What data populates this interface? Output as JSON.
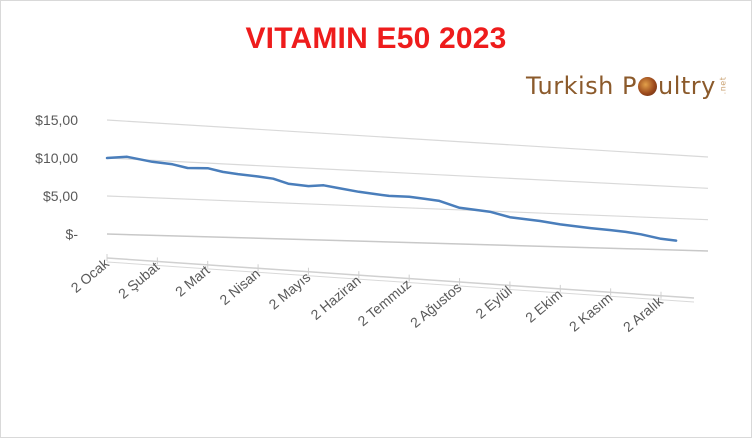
{
  "title": "VITAMIN E50 2023",
  "logo": {
    "text_before": "Turkish P",
    "text_after": "ultry",
    "tld": ".net"
  },
  "chart_data": {
    "type": "line",
    "title": "VITAMIN E50 2023",
    "ylim": [
      0,
      15
    ],
    "yticks": [
      {
        "value": 15,
        "label": "$15,00"
      },
      {
        "value": 10,
        "label": "$10,00"
      },
      {
        "value": 5,
        "label": "$5,00"
      },
      {
        "value": 0,
        "label": "$-"
      }
    ],
    "grid": true,
    "legend": "none",
    "categories": [
      "2 Ocak",
      "2 Şubat",
      "2 Mart",
      "2 Nisan",
      "2 Mayıs",
      "2 Haziran",
      "2 Temmuz",
      "2 Ağustos",
      "2 Eylül",
      "2 Ekim",
      "2 Kasım",
      "2 Aralık"
    ],
    "series": [
      {
        "color": "#4a7ebb",
        "x": [
          0,
          0.4,
          0.9,
          1.3,
          1.6,
          2.0,
          2.3,
          2.6,
          3.0,
          3.3,
          3.6,
          4.0,
          4.3,
          4.6,
          5.0,
          5.3,
          5.6,
          6.0,
          6.3,
          6.6,
          7.0,
          7.3,
          7.6,
          8.0,
          8.3,
          8.6,
          9.0,
          9.3,
          9.6,
          10.0,
          10.3,
          10.6,
          11.0,
          11.3
        ],
        "y": [
          10.0,
          10.3,
          9.8,
          9.6,
          9.2,
          9.3,
          8.9,
          8.7,
          8.5,
          8.3,
          7.7,
          7.5,
          7.7,
          7.4,
          7.0,
          6.8,
          6.6,
          6.6,
          6.4,
          6.2,
          5.3,
          5.1,
          4.9,
          4.2,
          4.0,
          3.8,
          3.4,
          3.2,
          3.0,
          2.8,
          2.6,
          2.3,
          1.7,
          1.5
        ]
      }
    ]
  }
}
